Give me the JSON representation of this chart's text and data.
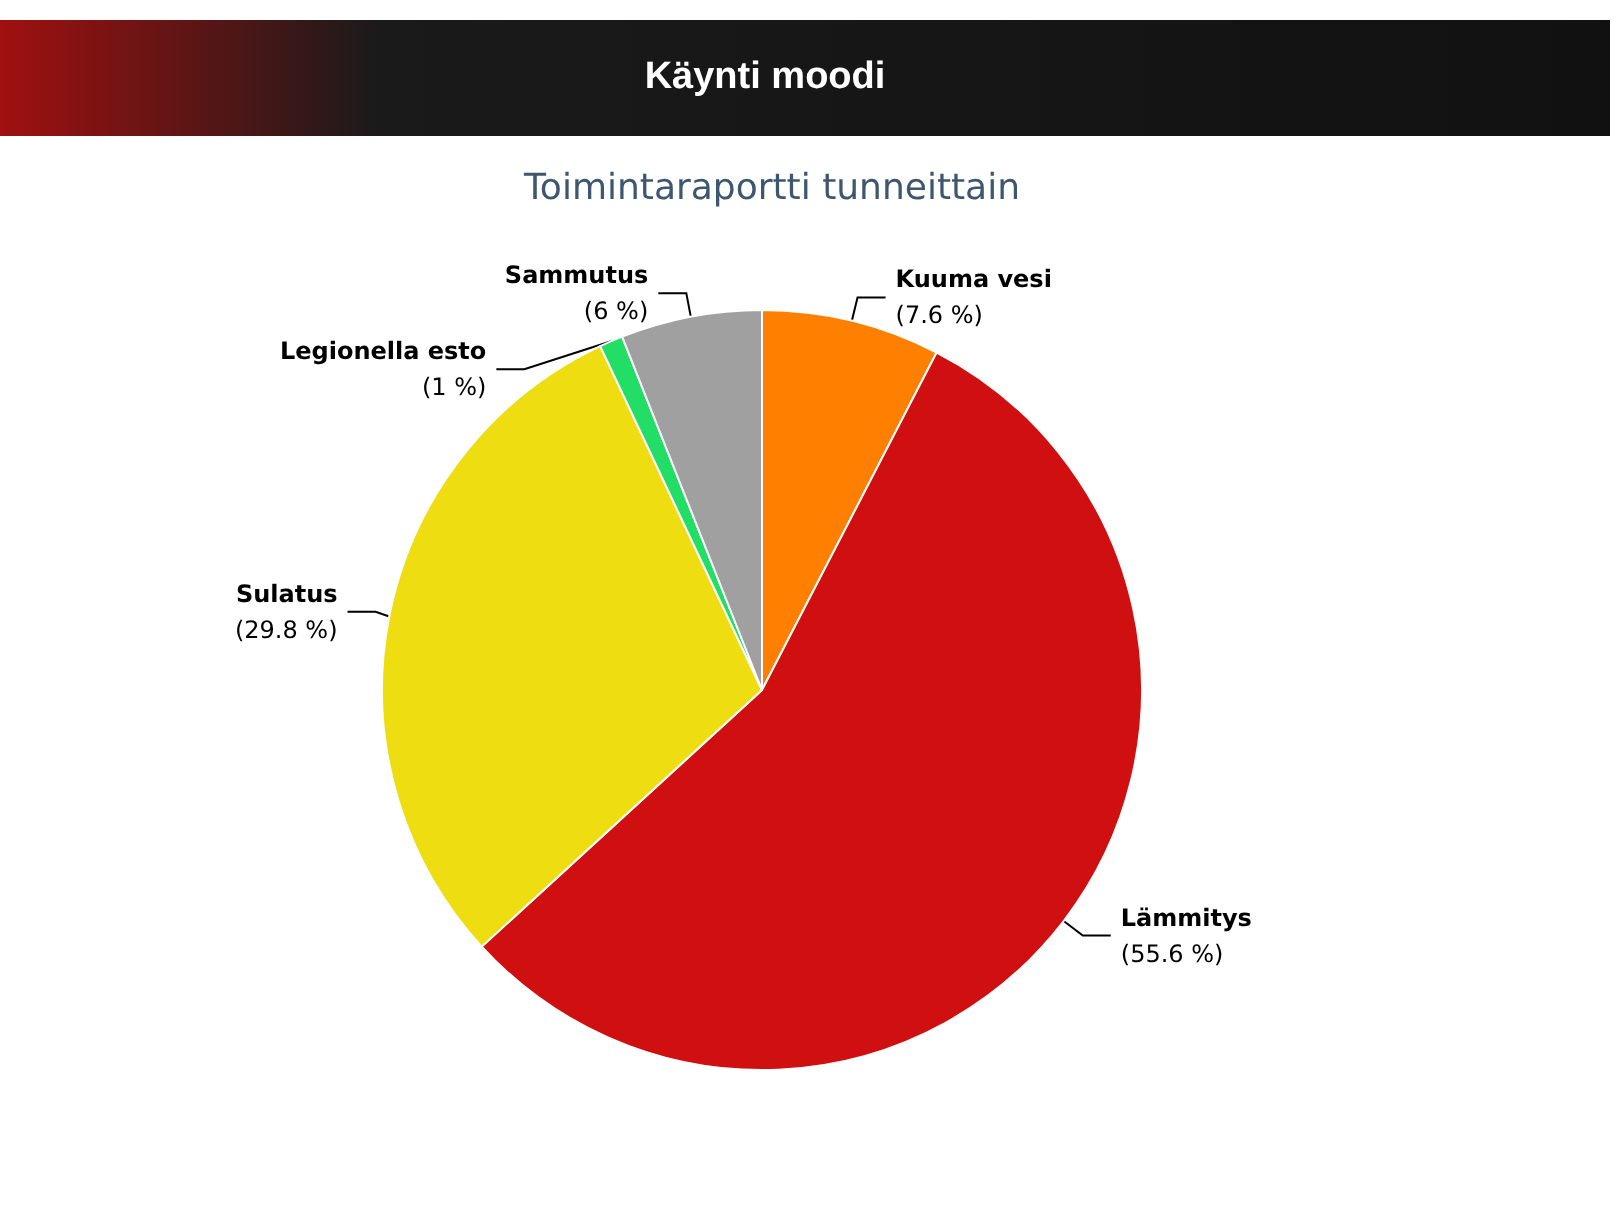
{
  "chart_data": {
    "type": "pie",
    "title": "Käynti moodi",
    "subtitle": "Toimintaraportti tunneittain",
    "categories": [
      "Kuuma vesi",
      "Lämmitys",
      "Sulatus",
      "Legionella esto",
      "Sammutus"
    ],
    "values": [
      7.6,
      55.6,
      29.8,
      1,
      6
    ],
    "value_labels": [
      "(7.6 %)",
      "(55.6 %)",
      "(29.8 %)",
      "(1 %)",
      "(6 %)"
    ],
    "colors": [
      "#ff8000",
      "#d01010",
      "#eedd11",
      "#22dd66",
      "#a0a0a0"
    ],
    "legend": false
  }
}
